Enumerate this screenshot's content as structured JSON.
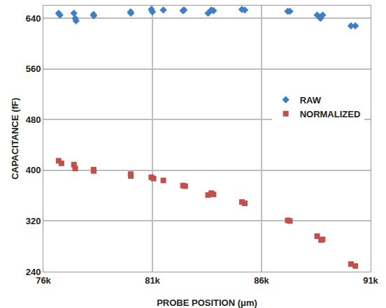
{
  "chart_data": {
    "type": "scatter",
    "x_label": "PROBE POSITION (μm)",
    "y_label": "CAPACITANCE (fF)",
    "xlim": [
      76000,
      91000
    ],
    "xticks": [
      {
        "value": 76000,
        "label": "76k"
      },
      {
        "value": 81000,
        "label": "81k"
      },
      {
        "value": 86000,
        "label": "86k"
      },
      {
        "value": 91000,
        "label": "91k"
      }
    ],
    "ylim": [
      240,
      660
    ],
    "yticks": [
      240,
      320,
      400,
      480,
      560,
      640
    ],
    "grid": true,
    "legend": "right",
    "series": [
      {
        "name": "RAW",
        "color": "#3f7fc8",
        "marker": "diamond",
        "x": [
          76700,
          76760,
          77400,
          77460,
          77500,
          78300,
          78310,
          80000,
          80010,
          80950,
          81000,
          81500,
          82400,
          82450,
          83550,
          83700,
          83800,
          85100,
          85230,
          87200,
          87300,
          88550,
          88700,
          88800,
          90100,
          90300
        ],
        "values": [
          648,
          645,
          648,
          640,
          636,
          646,
          644,
          650,
          648,
          654,
          650,
          653,
          652,
          653,
          648,
          653,
          652,
          654,
          653,
          651,
          651,
          645,
          640,
          645,
          628,
          628
        ]
      },
      {
        "name": "NORMALIZED",
        "color": "#c0504d",
        "marker": "square",
        "x": [
          76700,
          76830,
          77400,
          77460,
          78300,
          78310,
          80000,
          80010,
          80950,
          81050,
          81500,
          82400,
          82500,
          83550,
          83700,
          83800,
          85100,
          85230,
          87200,
          87300,
          88550,
          88730,
          88800,
          90100,
          90300
        ],
        "values": [
          415,
          411,
          409,
          403,
          401,
          399,
          394,
          391,
          389,
          387,
          384,
          376,
          375,
          361,
          364,
          362,
          350,
          348,
          321,
          320,
          296,
          290,
          291,
          252,
          249
        ]
      }
    ]
  }
}
